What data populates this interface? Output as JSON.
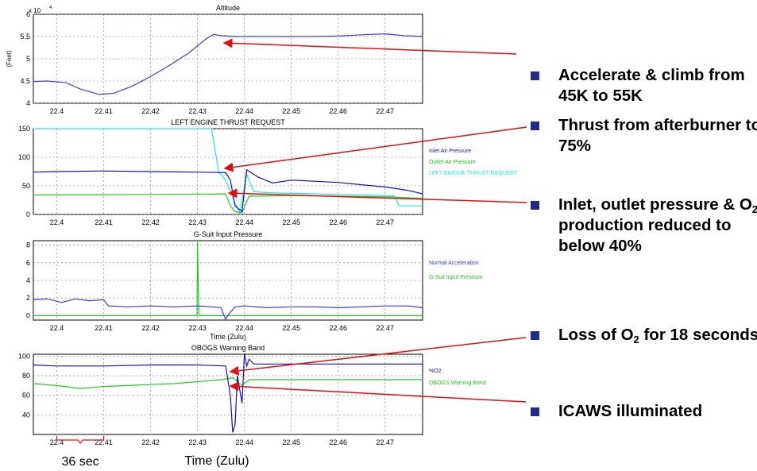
{
  "colors": {
    "blue": "#3a3ae6",
    "darkblue": "#1010c8",
    "green": "#22cc22",
    "cyan": "#22e6e6",
    "arrow": "#dd1111",
    "bullet": "#1f2a8a"
  },
  "bullets": [
    {
      "pre": " Accelerate & climb from 45K to 55K"
    },
    {
      "pre": "Thrust from afterburner to 75%"
    },
    {
      "pre": "Inlet, outlet pressure & O",
      "sub": "2",
      "post": " production reduced to below 40%"
    },
    {
      "pre": "Loss of O",
      "sub": "2",
      "post": " for 18 seconds"
    },
    {
      "pre": "ICAWS illuminated"
    }
  ],
  "footer": {
    "interval": "36 sec",
    "time_label": "Time (Zulu)"
  },
  "chart_data": [
    {
      "type": "line",
      "title": "Altitude",
      "ylabel": "(Feet)",
      "exponent": "x 10",
      "exponent_power": "4",
      "xlim": [
        22.395,
        22.478
      ],
      "ylim": [
        4,
        6
      ],
      "xticks": [
        "22.4",
        "22.41",
        "22.42",
        "22.43",
        "22.44",
        "22.45",
        "22.46",
        "22.47"
      ],
      "yticks": [
        "4",
        "4.5",
        "5",
        "5.5",
        "6"
      ],
      "series": [
        {
          "color": "#3a3ae6",
          "x": [
            22.395,
            22.398,
            22.402,
            22.405,
            22.409,
            22.412,
            22.416,
            22.42,
            22.424,
            22.428,
            22.432,
            22.4335,
            22.435,
            22.438,
            22.442,
            22.446,
            22.45,
            22.455,
            22.46,
            22.465,
            22.47,
            22.474,
            22.478
          ],
          "y": [
            4.49,
            4.5,
            4.46,
            4.32,
            4.2,
            4.22,
            4.38,
            4.6,
            4.85,
            5.12,
            5.46,
            5.55,
            5.52,
            5.5,
            5.5,
            5.5,
            5.5,
            5.5,
            5.51,
            5.54,
            5.56,
            5.52,
            5.5
          ]
        }
      ]
    },
    {
      "type": "line",
      "title": "LEFT ENGINE THRUST REQUEST",
      "xlim": [
        22.395,
        22.478
      ],
      "ylim": [
        0,
        150
      ],
      "xticks": [
        "22.4",
        "22.41",
        "22.42",
        "22.43",
        "22.44",
        "22.45",
        "22.46",
        "22.47"
      ],
      "yticks": [
        "0",
        "50",
        "100",
        "150"
      ],
      "legend": [
        "Inlet Air Pressure",
        "Outlet Air Pressure",
        "LEFT ENGINE THRUST REQUEST"
      ],
      "series": [
        {
          "name": "LEFT ENGINE THRUST REQUEST",
          "color": "#22e6e6",
          "x": [
            22.395,
            22.4325,
            22.433,
            22.4345,
            22.436,
            22.438,
            22.439,
            22.4405,
            22.442,
            22.445,
            22.45,
            22.46,
            22.47,
            22.472,
            22.473,
            22.478
          ],
          "y": [
            150,
            150,
            150,
            75,
            60,
            20,
            3,
            70,
            40,
            38,
            37,
            35,
            33,
            32,
            15,
            15
          ]
        },
        {
          "name": "Outlet Air Pressure",
          "color": "#22cc22",
          "x": [
            22.395,
            22.42,
            22.436,
            22.437,
            22.438,
            22.4395,
            22.441,
            22.45,
            22.46,
            22.47,
            22.478
          ],
          "y": [
            34,
            35,
            36,
            15,
            5,
            3,
            32,
            33,
            32,
            31,
            28
          ]
        },
        {
          "name": "Inlet Air Pressure",
          "color": "#1010c8",
          "x": [
            22.395,
            22.4,
            22.41,
            22.42,
            22.43,
            22.436,
            22.437,
            22.438,
            22.4395,
            22.4405,
            22.443,
            22.446,
            22.45,
            22.455,
            22.46,
            22.465,
            22.47,
            22.475,
            22.478
          ],
          "y": [
            74,
            75,
            76,
            75,
            74,
            73,
            60,
            15,
            5,
            78,
            65,
            55,
            60,
            58,
            56,
            52,
            48,
            42,
            36
          ]
        }
      ]
    },
    {
      "type": "line",
      "title": "G-Suit Input Pressure",
      "xlabel": "Time (Zulu)",
      "xlim": [
        22.395,
        22.478
      ],
      "ylim": [
        -0.5,
        8.5
      ],
      "xticks": [
        "22.4",
        "22.41",
        "22.42",
        "22.43",
        "22.44",
        "22.45",
        "22.46",
        "22.47"
      ],
      "yticks": [
        "0",
        "2",
        "4",
        "6",
        "8"
      ],
      "legend": [
        "Normal Acceleration",
        "G-Suit Input Pressure"
      ],
      "series": [
        {
          "name": "G-Suit Input Pressure",
          "color": "#22cc22",
          "x": [
            22.395,
            22.4299,
            22.43,
            22.4303,
            22.4306,
            22.478
          ],
          "y": [
            0,
            0,
            8.4,
            0,
            0,
            0
          ]
        },
        {
          "name": "Normal Acceleration",
          "color": "#3a3ae6",
          "x": [
            22.395,
            22.398,
            22.401,
            22.404,
            22.407,
            22.41,
            22.411,
            22.415,
            22.42,
            22.425,
            22.43,
            22.433,
            22.435,
            22.436,
            22.437,
            22.438,
            22.44,
            22.445,
            22.45,
            22.455,
            22.46,
            22.465,
            22.47,
            22.475,
            22.478
          ],
          "y": [
            1.8,
            1.9,
            1.5,
            1.9,
            1.7,
            1.8,
            1.1,
            1.0,
            1.1,
            1.0,
            1.1,
            1.0,
            0.9,
            -0.4,
            0.4,
            1.0,
            1.1,
            0.9,
            1.0,
            1.0,
            0.9,
            1.0,
            1.1,
            1.1,
            0.9
          ]
        }
      ]
    },
    {
      "type": "line",
      "title": "OBOGS Warning Band",
      "xlim": [
        22.395,
        22.478
      ],
      "ylim": [
        20,
        102
      ],
      "xticks": [
        "22.4",
        "22.41",
        "22.42",
        "22.43",
        "22.44",
        "22.45",
        "22.46",
        "22.47"
      ],
      "yticks": [
        "40",
        "60",
        "80",
        "100"
      ],
      "legend": [
        "%O2",
        "OBOGS Warning Band"
      ],
      "series": [
        {
          "name": "OBOGS Warning Band",
          "color": "#22cc22",
          "x": [
            22.395,
            22.4,
            22.405,
            22.41,
            22.415,
            22.42,
            22.425,
            22.43,
            22.435,
            22.4375,
            22.4395,
            22.441,
            22.45,
            22.46,
            22.47,
            22.478
          ],
          "y": [
            72,
            70,
            67,
            69,
            70,
            71,
            72,
            74,
            76,
            78,
            70,
            76,
            76,
            76,
            76,
            76
          ]
        },
        {
          "name": "%O2",
          "color": "#1010c8",
          "x": [
            22.395,
            22.4,
            22.41,
            22.42,
            22.43,
            22.436,
            22.437,
            22.4375,
            22.438,
            22.4385,
            22.4395,
            22.44,
            22.4405,
            22.441,
            22.442,
            22.45,
            22.46,
            22.47,
            22.478
          ],
          "y": [
            91,
            90,
            90,
            91,
            91,
            90,
            60,
            22,
            30,
            80,
            52,
            103,
            90,
            97,
            92,
            92,
            92,
            92,
            92
          ]
        }
      ]
    }
  ]
}
